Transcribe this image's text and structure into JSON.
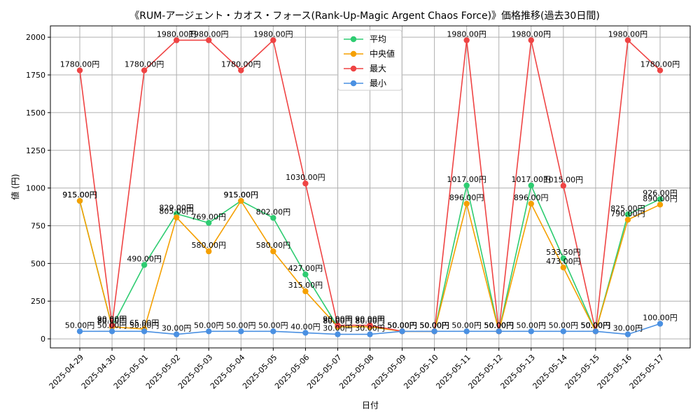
{
  "chart_data": {
    "type": "line",
    "title": "《RUM-アージェント・カオス・フォース(Rank-Up-Magic Argent Chaos Force)》価格推移(過去30日間)",
    "xlabel": "日付",
    "ylabel": "値 (円)",
    "ylim": [
      -60,
      2075
    ],
    "yticks": [
      0,
      250,
      500,
      750,
      1000,
      1250,
      1500,
      1750,
      2000
    ],
    "grid": true,
    "legend_position": "top-center",
    "value_suffix": "円",
    "categories": [
      "2025-04-29",
      "2025-04-30",
      "2025-05-01",
      "2025-05-02",
      "2025-05-03",
      "2025-05-04",
      "2025-05-05",
      "2025-05-06",
      "2025-05-07",
      "2025-05-08",
      "2025-05-09",
      "2025-05-10",
      "2025-05-11",
      "2025-05-12",
      "2025-05-13",
      "2025-05-14",
      "2025-05-15",
      "2025-05-16",
      "2025-05-17"
    ],
    "series": [
      {
        "name": "平均",
        "color": "#2ecc71",
        "values": [
          915,
          80,
          490,
          829,
          769,
          915,
          802,
          427,
          80,
          80,
          50,
          50,
          1017,
          50,
          1017,
          533.5,
          50,
          825,
          926
        ]
      },
      {
        "name": "中央値",
        "color": "#f5a000",
        "values": [
          915,
          80,
          65,
          805,
          580,
          915,
          580,
          315,
          80,
          80,
          50,
          50,
          896,
          50,
          896,
          473,
          50,
          790,
          890
        ]
      },
      {
        "name": "最大",
        "color": "#ef4444",
        "values": [
          1780,
          90,
          1780,
          1980,
          1980,
          1780,
          1980,
          1030,
          90,
          90,
          50,
          50,
          1980,
          50,
          1980,
          1015,
          50,
          1980,
          1780
        ]
      },
      {
        "name": "最小",
        "color": "#4a90e2",
        "values": [
          50,
          50,
          50,
          30,
          50,
          50,
          50,
          40,
          30,
          30,
          50,
          50,
          50,
          50,
          50,
          50,
          50,
          30,
          100
        ]
      }
    ]
  }
}
